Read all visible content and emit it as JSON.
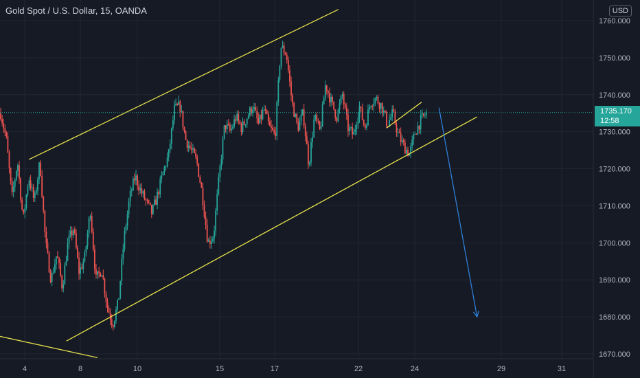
{
  "title": "Gold Spot / U.S. Dollar, 15, OANDA",
  "currency": "USD",
  "last_price": "1735.170",
  "countdown": "12:58",
  "colors": {
    "background": "#161a25",
    "grid": "#232632",
    "up": "#26a69a",
    "down": "#ef5350",
    "channel": "#e8e24a",
    "arrow": "#2f7fd6",
    "axis_text": "#b2b5be"
  },
  "chart_data": {
    "type": "candlestick",
    "ylim": [
      1668,
      1762
    ],
    "y_ticks": [
      "1760.000",
      "1750.000",
      "1740.000",
      "1730.000",
      "1720.000",
      "1710.000",
      "1700.000",
      "1690.000",
      "1680.000",
      "1670.000"
    ],
    "x_ticks": [
      "4",
      "8",
      "10",
      "15",
      "17",
      "22",
      "24",
      "29",
      "31"
    ],
    "price_path": [
      1735,
      1728,
      1712,
      1722,
      1706,
      1718,
      1711,
      1722,
      1700,
      1690,
      1697,
      1688,
      1700,
      1704,
      1692,
      1696,
      1709,
      1690,
      1693,
      1683,
      1678,
      1684,
      1701,
      1712,
      1718,
      1714,
      1711,
      1708,
      1713,
      1719,
      1724,
      1736,
      1737,
      1728,
      1725,
      1722,
      1713,
      1700,
      1702,
      1718,
      1732,
      1730,
      1734,
      1731,
      1734,
      1737,
      1732,
      1736,
      1731,
      1729,
      1753,
      1751,
      1738,
      1731,
      1735,
      1721,
      1734,
      1730,
      1743,
      1738,
      1734,
      1740,
      1731,
      1729,
      1737,
      1731,
      1738,
      1739,
      1737,
      1732,
      1735,
      1729,
      1726,
      1724,
      1730,
      1733,
      1735.17
    ],
    "annotations": {
      "channel_upper": {
        "x1": 4.3,
        "y1": 1722.5,
        "x2": 20.8,
        "y2": 1763
      },
      "channel_lower": {
        "x1": 7.0,
        "y1": 1673.5,
        "x2": 27.6,
        "y2": 1734
      },
      "small_channel": {
        "x1": 23.0,
        "y1": 1731,
        "x2": 24.4,
        "y2": 1738
      },
      "lower_line": {
        "x1": 1.3,
        "y1": 1675.5,
        "x2": 8.6,
        "y2": 1669
      },
      "arrow": {
        "x1": 25.4,
        "y1": 1736.5,
        "x2": 27.6,
        "y2": 1680
      }
    }
  }
}
